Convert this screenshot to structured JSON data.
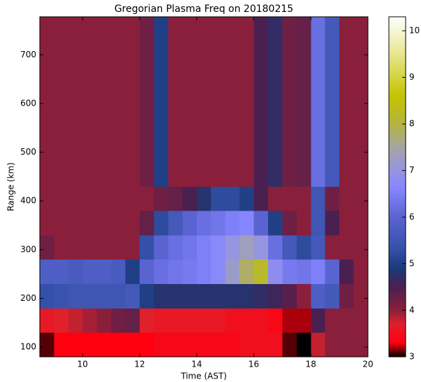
{
  "chart_data": {
    "type": "heatmap",
    "title": "Gregorian Plasma Freq on 20180215",
    "x_label": "Time (AST)",
    "y_label": "Range (km)",
    "xlim": [
      8.5,
      20
    ],
    "xticks": [
      10,
      12,
      14,
      16,
      18,
      20
    ],
    "ylim": [
      80,
      778
    ],
    "yticks": [
      100,
      200,
      300,
      400,
      500,
      600,
      700
    ],
    "zlim": [
      3,
      10.3
    ],
    "zticks": [
      3,
      4,
      5,
      6,
      7,
      8,
      9,
      10
    ],
    "colorscale": [
      {
        "value": 3,
        "color": "#000000"
      },
      {
        "value": 3.3,
        "color": "#ff0010"
      },
      {
        "value": 3.7,
        "color": "#e0202a"
      },
      {
        "value": 4,
        "color": "#8a1f3c"
      },
      {
        "value": 4.5,
        "color": "#4a2050"
      },
      {
        "value": 4.9,
        "color": "#1a3a7a"
      },
      {
        "value": 5.3,
        "color": "#3450a8"
      },
      {
        "value": 6,
        "color": "#5a64d0"
      },
      {
        "value": 6.6,
        "color": "#8585ff"
      },
      {
        "value": 7,
        "color": "#9595e0"
      },
      {
        "value": 7.5,
        "color": "#a5a5a5"
      },
      {
        "value": 8,
        "color": "#b4b440"
      },
      {
        "value": 8.6,
        "color": "#c4c400"
      },
      {
        "value": 9.5,
        "color": "#e6e690"
      },
      {
        "value": 10.3,
        "color": "#ffffff"
      }
    ],
    "x_edges": [
      8.5,
      9,
      9.5,
      10,
      10.5,
      11,
      11.5,
      12,
      12.5,
      13,
      13.5,
      14,
      14.5,
      15,
      15.5,
      16,
      16.5,
      17,
      17.5,
      18,
      18.5,
      19,
      19.5,
      20
    ],
    "y_edges": [
      80,
      130,
      180,
      230,
      280,
      330,
      380,
      430,
      480,
      530,
      580,
      630,
      680,
      730,
      778
    ],
    "z": [
      [
        3.1,
        3.3,
        3.3,
        3.3,
        3.3,
        3.3,
        3.3,
        3.3,
        3.4,
        3.4,
        3.4,
        3.4,
        3.4,
        3.4,
        3.5,
        3.5,
        3.5,
        3.1,
        3.0,
        3.8,
        4.0,
        4.0,
        4.0
      ],
      [
        3.6,
        3.7,
        3.8,
        3.9,
        4.0,
        4.2,
        4.3,
        3.7,
        3.6,
        3.6,
        3.6,
        3.6,
        3.6,
        3.5,
        3.5,
        3.5,
        3.4,
        3.2,
        3.2,
        4.5,
        4.0,
        4.0,
        4.0
      ],
      [
        5.3,
        5.4,
        5.5,
        5.5,
        5.5,
        5.5,
        5.6,
        5.0,
        4.8,
        4.8,
        4.8,
        4.8,
        4.8,
        4.8,
        4.8,
        4.7,
        4.6,
        4.4,
        4.0,
        5.8,
        5.6,
        4.2,
        4.0
      ],
      [
        5.8,
        5.8,
        5.7,
        5.8,
        5.8,
        5.7,
        5.0,
        6.0,
        6.2,
        6.3,
        6.4,
        6.5,
        6.7,
        7.2,
        7.8,
        8.2,
        6.8,
        6.4,
        6.3,
        6.5,
        6.0,
        4.5,
        4.0
      ],
      [
        4.2,
        4.0,
        4.0,
        4.0,
        4.0,
        4.0,
        4.0,
        5.3,
        6.0,
        6.2,
        6.3,
        6.5,
        6.7,
        7.0,
        7.3,
        7.0,
        6.2,
        5.6,
        5.2,
        5.6,
        4.0,
        4.0,
        4.0
      ],
      [
        4.0,
        4.0,
        4.0,
        4.0,
        4.0,
        4.0,
        4.0,
        4.3,
        5.2,
        5.6,
        6.0,
        6.2,
        6.3,
        6.5,
        6.6,
        6.0,
        5.0,
        4.2,
        4.0,
        5.5,
        4.5,
        4.0,
        4.0
      ],
      [
        4.0,
        4.0,
        4.0,
        4.0,
        4.0,
        4.0,
        4.0,
        4.0,
        4.2,
        4.3,
        4.5,
        4.8,
        5.2,
        5.2,
        5.0,
        4.5,
        4.0,
        4.0,
        4.0,
        5.5,
        4.2,
        4.0,
        4.0
      ],
      [
        4.0,
        4.0,
        4.0,
        4.0,
        4.0,
        4.0,
        4.0,
        4.2,
        5.0,
        4.0,
        4.0,
        4.0,
        4.0,
        4.0,
        4.0,
        4.5,
        4.7,
        4.2,
        4.3,
        6.2,
        5.6,
        4.0,
        4.0
      ],
      [
        4.0,
        4.0,
        4.0,
        4.0,
        4.0,
        4.0,
        4.0,
        4.2,
        5.0,
        4.0,
        4.0,
        4.0,
        4.0,
        4.0,
        4.0,
        4.5,
        4.7,
        4.2,
        4.3,
        6.2,
        5.6,
        4.0,
        4.0
      ],
      [
        4.0,
        4.0,
        4.0,
        4.0,
        4.0,
        4.0,
        4.0,
        4.2,
        5.0,
        4.0,
        4.0,
        4.0,
        4.0,
        4.0,
        4.0,
        4.5,
        4.7,
        4.2,
        4.3,
        6.2,
        5.6,
        4.0,
        4.0
      ],
      [
        4.0,
        4.0,
        4.0,
        4.0,
        4.0,
        4.0,
        4.0,
        4.2,
        5.0,
        4.0,
        4.0,
        4.0,
        4.0,
        4.0,
        4.0,
        4.5,
        4.7,
        4.2,
        4.3,
        6.2,
        5.6,
        4.0,
        4.0
      ],
      [
        4.0,
        4.0,
        4.0,
        4.0,
        4.0,
        4.0,
        4.0,
        4.2,
        5.0,
        4.0,
        4.0,
        4.0,
        4.0,
        4.0,
        4.0,
        4.5,
        4.7,
        4.2,
        4.3,
        6.2,
        5.6,
        4.0,
        4.0
      ],
      [
        4.0,
        4.0,
        4.0,
        4.0,
        4.0,
        4.0,
        4.0,
        4.2,
        5.0,
        4.0,
        4.0,
        4.0,
        4.0,
        4.0,
        4.0,
        4.5,
        4.7,
        4.2,
        4.3,
        6.2,
        5.6,
        4.0,
        4.0
      ],
      [
        4.0,
        4.0,
        4.0,
        4.0,
        4.0,
        4.0,
        4.0,
        4.2,
        5.0,
        4.0,
        4.0,
        4.0,
        4.0,
        4.0,
        4.0,
        4.5,
        4.7,
        4.2,
        4.3,
        6.2,
        5.6,
        4.0,
        4.0
      ]
    ]
  }
}
